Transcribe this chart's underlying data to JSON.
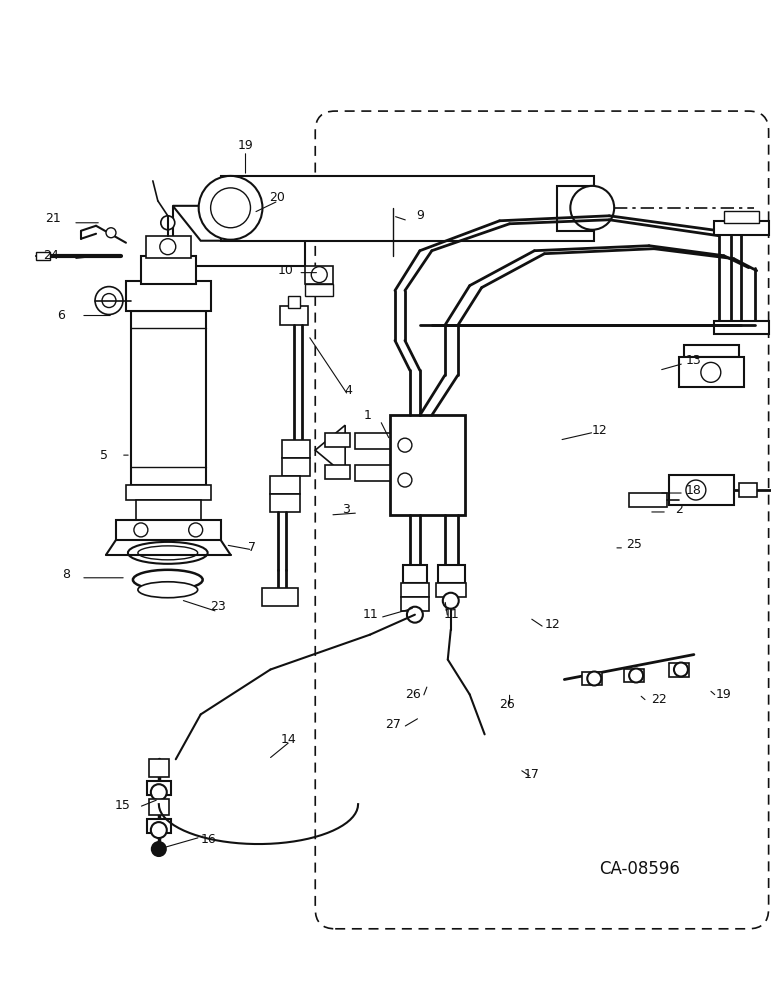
{
  "bg_color": "#ffffff",
  "lc": "#111111",
  "watermark": "CA-08596",
  "fig_w": 7.72,
  "fig_h": 10.0,
  "dpi": 100
}
